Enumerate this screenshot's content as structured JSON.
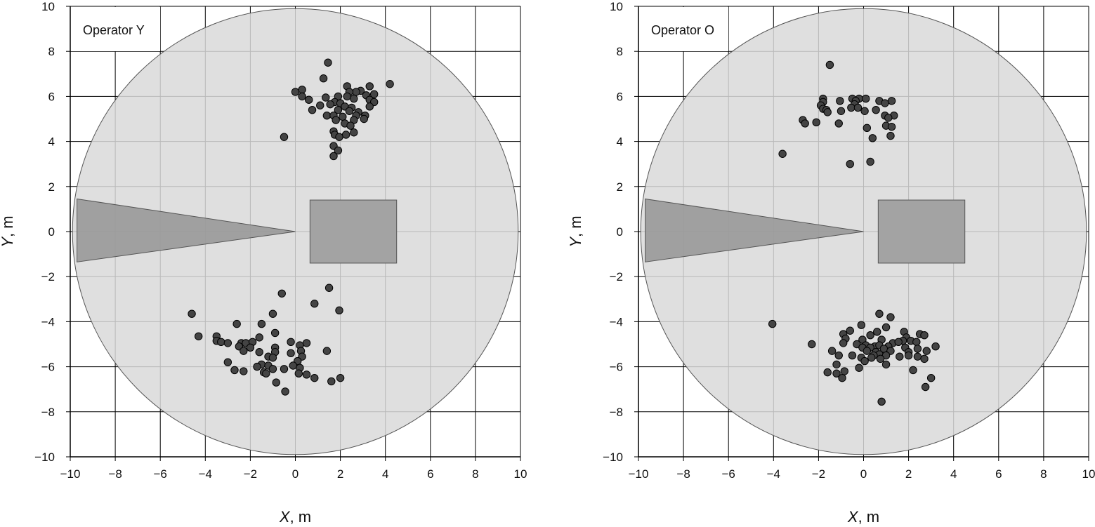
{
  "chart_data": [
    {
      "type": "scatter",
      "title": "Operator Y",
      "xlabel": "X",
      "xunit": ", m",
      "ylabel": "Y",
      "yunit": ", m",
      "xlim": [
        -10,
        10
      ],
      "ylim": [
        -10,
        10
      ],
      "xticks": [
        "−10",
        "−8",
        "−6",
        "−4",
        "−2",
        "0",
        "2",
        "4",
        "6",
        "8",
        "10"
      ],
      "yticks": [
        "10",
        "8",
        "6",
        "4",
        "2",
        "0",
        "−2",
        "−4",
        "−6",
        "−8",
        "−10"
      ],
      "grid": true,
      "legend_position": "top-left",
      "region_circle": {
        "cx": 0,
        "cy": 0,
        "r": 9.9
      },
      "region_wedge": [
        [
          0,
          0
        ],
        [
          -9.7,
          1.45
        ],
        [
          -9.7,
          -1.35
        ]
      ],
      "region_rect": {
        "x0": 0.65,
        "x1": 4.5,
        "y0": -1.4,
        "y1": 1.4
      },
      "points": [
        [
          1.45,
          7.5
        ],
        [
          1.25,
          6.8
        ],
        [
          4.2,
          6.55
        ],
        [
          3.3,
          6.45
        ],
        [
          2.3,
          6.45
        ],
        [
          0.3,
          6.3
        ],
        [
          2.9,
          6.25
        ],
        [
          2.7,
          6.2
        ],
        [
          2.4,
          6.2
        ],
        [
          0.0,
          6.2
        ],
        [
          3.5,
          6.1
        ],
        [
          0.3,
          6.0
        ],
        [
          1.9,
          6.0
        ],
        [
          2.3,
          6.0
        ],
        [
          3.15,
          6.05
        ],
        [
          1.35,
          5.95
        ],
        [
          0.6,
          5.85
        ],
        [
          2.6,
          5.9
        ],
        [
          3.3,
          5.85
        ],
        [
          3.5,
          5.75
        ],
        [
          1.75,
          5.75
        ],
        [
          2.0,
          5.7
        ],
        [
          1.55,
          5.65
        ],
        [
          1.1,
          5.6
        ],
        [
          2.2,
          5.55
        ],
        [
          3.3,
          5.55
        ],
        [
          2.5,
          5.5
        ],
        [
          0.75,
          5.4
        ],
        [
          1.9,
          5.4
        ],
        [
          2.4,
          5.35
        ],
        [
          2.8,
          5.3
        ],
        [
          1.4,
          5.15
        ],
        [
          1.7,
          5.15
        ],
        [
          2.7,
          5.15
        ],
        [
          3.1,
          5.15
        ],
        [
          2.1,
          5.1
        ],
        [
          3.05,
          5.0
        ],
        [
          1.8,
          4.95
        ],
        [
          2.6,
          4.95
        ],
        [
          2.2,
          4.8
        ],
        [
          2.45,
          4.7
        ],
        [
          1.7,
          4.45
        ],
        [
          2.6,
          4.4
        ],
        [
          1.75,
          4.3
        ],
        [
          2.25,
          4.3
        ],
        [
          1.95,
          4.2
        ],
        [
          -0.5,
          4.2
        ],
        [
          1.7,
          3.8
        ],
        [
          1.9,
          3.6
        ],
        [
          1.7,
          3.35
        ],
        [
          1.5,
          -2.5
        ],
        [
          -0.6,
          -2.75
        ],
        [
          0.85,
          -3.2
        ],
        [
          1.95,
          -3.5
        ],
        [
          -1.0,
          -3.65
        ],
        [
          -4.6,
          -3.65
        ],
        [
          -2.6,
          -4.1
        ],
        [
          -1.5,
          -4.1
        ],
        [
          -0.9,
          -4.5
        ],
        [
          -4.3,
          -4.65
        ],
        [
          -3.5,
          -4.65
        ],
        [
          -1.6,
          -4.7
        ],
        [
          -3.5,
          -4.85
        ],
        [
          -3.3,
          -4.9
        ],
        [
          -3.0,
          -4.95
        ],
        [
          -2.4,
          -4.95
        ],
        [
          -2.2,
          -4.95
        ],
        [
          -1.9,
          -4.9
        ],
        [
          -0.2,
          -4.9
        ],
        [
          0.5,
          -4.95
        ],
        [
          -2.5,
          -5.1
        ],
        [
          -2.0,
          -5.15
        ],
        [
          -0.9,
          -5.15
        ],
        [
          0.2,
          -5.05
        ],
        [
          -2.3,
          -5.3
        ],
        [
          -1.6,
          -5.35
        ],
        [
          0.25,
          -5.3
        ],
        [
          1.4,
          -5.3
        ],
        [
          -0.9,
          -5.35
        ],
        [
          -0.2,
          -5.4
        ],
        [
          -1.2,
          -5.55
        ],
        [
          -1.0,
          -5.6
        ],
        [
          0.3,
          -5.55
        ],
        [
          0.1,
          -5.75
        ],
        [
          -3.0,
          -5.8
        ],
        [
          -1.5,
          -5.9
        ],
        [
          -1.2,
          -5.95
        ],
        [
          -1.7,
          -6.0
        ],
        [
          -0.1,
          -5.95
        ],
        [
          0.2,
          -6.05
        ],
        [
          -1.0,
          -6.1
        ],
        [
          -0.5,
          -6.1
        ],
        [
          -2.7,
          -6.15
        ],
        [
          -2.3,
          -6.2
        ],
        [
          -1.4,
          -6.25
        ],
        [
          0.15,
          -6.3
        ],
        [
          0.5,
          -6.35
        ],
        [
          -1.3,
          -6.3
        ],
        [
          0.85,
          -6.5
        ],
        [
          2.0,
          -6.5
        ],
        [
          1.6,
          -6.65
        ],
        [
          -0.85,
          -6.7
        ],
        [
          -0.45,
          -7.1
        ]
      ]
    },
    {
      "type": "scatter",
      "title": "Operator O",
      "xlabel": "X",
      "xunit": ", m",
      "ylabel": "Y",
      "yunit": ", m",
      "xlim": [
        -10,
        10
      ],
      "ylim": [
        -10,
        10
      ],
      "xticks": [
        "−10",
        "−8",
        "−6",
        "−4",
        "−2",
        "0",
        "2",
        "4",
        "6",
        "8",
        "10"
      ],
      "yticks": [
        "10",
        "8",
        "6",
        "4",
        "2",
        "0",
        "−2",
        "−4",
        "−6",
        "−8",
        "−10"
      ],
      "grid": true,
      "legend_position": "top-left",
      "region_circle": {
        "cx": 0,
        "cy": 0,
        "r": 9.9
      },
      "region_wedge": [
        [
          0,
          0
        ],
        [
          -9.7,
          1.45
        ],
        [
          -9.7,
          -1.35
        ]
      ],
      "region_rect": {
        "x0": 0.65,
        "x1": 4.5,
        "y0": -1.4,
        "y1": 1.4
      },
      "points": [
        [
          -1.5,
          7.4
        ],
        [
          -1.8,
          5.9
        ],
        [
          -0.5,
          5.9
        ],
        [
          -0.2,
          5.9
        ],
        [
          0.1,
          5.9
        ],
        [
          -1.8,
          5.75
        ],
        [
          -1.05,
          5.8
        ],
        [
          -0.35,
          5.8
        ],
        [
          0.7,
          5.8
        ],
        [
          1.25,
          5.8
        ],
        [
          0.95,
          5.7
        ],
        [
          -1.9,
          5.6
        ],
        [
          -0.4,
          5.65
        ],
        [
          -1.8,
          5.45
        ],
        [
          -1.65,
          5.4
        ],
        [
          -0.55,
          5.5
        ],
        [
          -0.25,
          5.5
        ],
        [
          -1.6,
          5.3
        ],
        [
          -1.0,
          5.35
        ],
        [
          0.05,
          5.35
        ],
        [
          0.55,
          5.4
        ],
        [
          0.95,
          5.15
        ],
        [
          1.35,
          5.15
        ],
        [
          1.1,
          5.05
        ],
        [
          -2.7,
          4.95
        ],
        [
          -2.6,
          4.8
        ],
        [
          -2.1,
          4.85
        ],
        [
          -1.1,
          4.8
        ],
        [
          1.0,
          4.7
        ],
        [
          1.25,
          4.65
        ],
        [
          0.15,
          4.6
        ],
        [
          1.2,
          4.25
        ],
        [
          0.4,
          4.15
        ],
        [
          -3.6,
          3.45
        ],
        [
          -0.6,
          3.0
        ],
        [
          0.3,
          3.1
        ],
        [
          0.7,
          -3.65
        ],
        [
          1.2,
          -3.8
        ],
        [
          -4.05,
          -4.1
        ],
        [
          -0.1,
          -4.15
        ],
        [
          1.0,
          -4.25
        ],
        [
          -0.6,
          -4.4
        ],
        [
          0.6,
          -4.45
        ],
        [
          1.8,
          -4.45
        ],
        [
          -0.9,
          -4.55
        ],
        [
          2.5,
          -4.55
        ],
        [
          2.7,
          -4.6
        ],
        [
          0.3,
          -4.6
        ],
        [
          1.9,
          -4.7
        ],
        [
          -0.8,
          -4.75
        ],
        [
          0.8,
          -4.8
        ],
        [
          -0.05,
          -4.8
        ],
        [
          1.75,
          -4.85
        ],
        [
          2.1,
          -4.85
        ],
        [
          -0.9,
          -4.95
        ],
        [
          1.3,
          -4.95
        ],
        [
          1.55,
          -4.9
        ],
        [
          2.35,
          -4.9
        ],
        [
          -2.3,
          -5.0
        ],
        [
          -0.3,
          -5.0
        ],
        [
          0.1,
          -5.05
        ],
        [
          0.5,
          -5.1
        ],
        [
          0.7,
          -5.05
        ],
        [
          1.1,
          -5.1
        ],
        [
          3.2,
          -5.1
        ],
        [
          -0.05,
          -5.15
        ],
        [
          0.3,
          -5.15
        ],
        [
          0.9,
          -5.2
        ],
        [
          1.85,
          -5.15
        ],
        [
          2.4,
          -5.2
        ],
        [
          -1.4,
          -5.3
        ],
        [
          0.15,
          -5.3
        ],
        [
          0.55,
          -5.35
        ],
        [
          1.2,
          -5.3
        ],
        [
          2.8,
          -5.3
        ],
        [
          2.0,
          -5.35
        ],
        [
          0.7,
          -5.45
        ],
        [
          -1.1,
          -5.5
        ],
        [
          -0.5,
          -5.5
        ],
        [
          0.45,
          -5.5
        ],
        [
          1.0,
          -5.5
        ],
        [
          1.6,
          -5.55
        ],
        [
          2.0,
          -5.5
        ],
        [
          2.4,
          -5.55
        ],
        [
          -0.1,
          -5.6
        ],
        [
          0.35,
          -5.6
        ],
        [
          0.75,
          -5.65
        ],
        [
          2.7,
          -5.65
        ],
        [
          0.05,
          -5.75
        ],
        [
          -1.2,
          -5.9
        ],
        [
          1.0,
          -5.9
        ],
        [
          -0.2,
          -6.05
        ],
        [
          -1.6,
          -6.25
        ],
        [
          -0.85,
          -6.2
        ],
        [
          2.2,
          -6.15
        ],
        [
          -1.2,
          -6.3
        ],
        [
          -0.95,
          -6.5
        ],
        [
          3.0,
          -6.5
        ],
        [
          2.75,
          -6.9
        ],
        [
          0.8,
          -7.55
        ]
      ]
    }
  ]
}
